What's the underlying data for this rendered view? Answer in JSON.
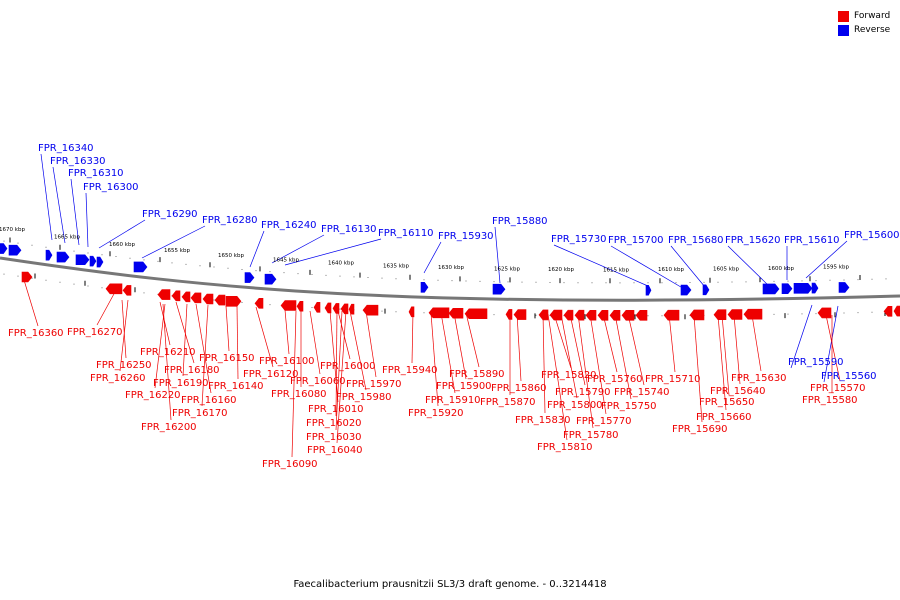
{
  "caption": "Faecalibacterium prausnitzii SL3/3 draft genome. - 0..3214418",
  "legend": [
    {
      "label": "Forward",
      "color": "#ee0000"
    },
    {
      "label": "Reverse",
      "color": "#0000ee"
    }
  ],
  "colors": {
    "forward": "#ee0000",
    "reverse": "#0000ee",
    "axis": "#777777"
  },
  "scale_labels": [
    "1670 kbp",
    "1665 kbp",
    "1660 kbp",
    "1655 kbp",
    "1650 kbp",
    "1645 kbp",
    "1640 kbp",
    "1635 kbp",
    "1630 kbp",
    "1625 kbp",
    "1620 kbp",
    "1615 kbp",
    "1610 kbp",
    "1605 kbp",
    "1600 kbp",
    "1595 kbp"
  ],
  "reverse_labels": [
    "FPR_16340",
    "FPR_16330",
    "FPR_16310",
    "FPR_16300",
    "FPR_16290",
    "FPR_16280",
    "FPR_16240",
    "FPR_16130",
    "FPR_16110",
    "FPR_15930",
    "FPR_15880",
    "FPR_15730",
    "FPR_15700",
    "FPR_15680",
    "FPR_15620",
    "FPR_15610",
    "FPR_15600",
    "FPR_15590",
    "FPR_15560"
  ],
  "forward_labels": [
    "FPR_16360",
    "FPR_16270",
    "FPR_16250",
    "FPR_16260",
    "FPR_16210",
    "FPR_16180",
    "FPR_16190",
    "FPR_16220",
    "FPR_16160",
    "FPR_16170",
    "FPR_16200",
    "FPR_16150",
    "FPR_16140",
    "FPR_16120",
    "FPR_16100",
    "FPR_16060",
    "FPR_16080",
    "FPR_16090",
    "FPR_16000",
    "FPR_16010",
    "FPR_16020",
    "FPR_16030",
    "FPR_16040",
    "FPR_15970",
    "FPR_15980",
    "FPR_15940",
    "FPR_15920",
    "FPR_15910",
    "FPR_15900",
    "FPR_15890",
    "FPR_15870",
    "FPR_15860",
    "FPR_15830",
    "FPR_15820",
    "FPR_15810",
    "FPR_15800",
    "FPR_15790",
    "FPR_15780",
    "FPR_15770",
    "FPR_15760",
    "FPR_15750",
    "FPR_15740",
    "FPR_15710",
    "FPR_15690",
    "FPR_15660",
    "FPR_15650",
    "FPR_15640",
    "FPR_15630",
    "FPR_15570",
    "FPR_15580"
  ]
}
